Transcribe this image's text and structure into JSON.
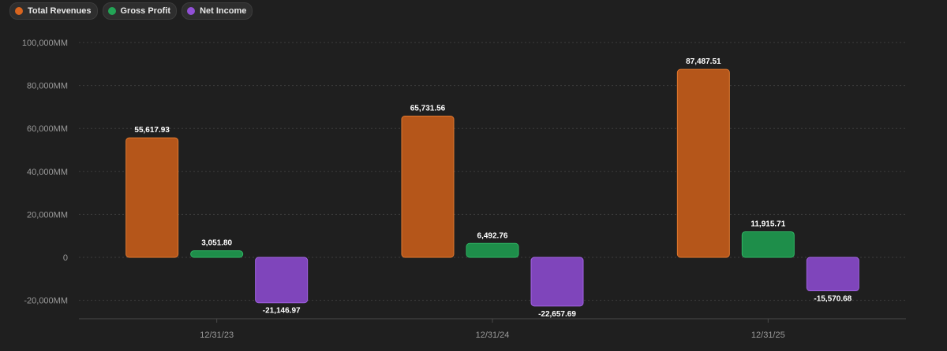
{
  "chart_data": {
    "type": "bar",
    "categories": [
      "12/31/23",
      "12/31/24",
      "12/31/25"
    ],
    "series": [
      {
        "name": "Total Revenues",
        "color": "#b5561a",
        "values": [
          55617.93,
          65731.56,
          87487.51
        ],
        "labels": [
          "55,617.93",
          "65,731.56",
          "87,487.51"
        ]
      },
      {
        "name": "Gross Profit",
        "color": "#1e8e4a",
        "values": [
          3051.8,
          6492.76,
          11915.71
        ],
        "labels": [
          "3,051.80",
          "6,492.76",
          "11,915.71"
        ]
      },
      {
        "name": "Net Income",
        "color": "#7f45bb",
        "values": [
          -21146.97,
          -22657.69,
          -15570.68
        ],
        "labels": [
          "-21,146.97",
          "-22,657.69",
          "-15,570.68"
        ]
      }
    ],
    "y_ticks": [
      100000,
      80000,
      60000,
      40000,
      20000,
      0,
      -20000
    ],
    "y_tick_labels": [
      "100,000MM",
      "80,000MM",
      "60,000MM",
      "40,000MM",
      "20,000MM",
      "0",
      "-20,000MM"
    ],
    "ylim": [
      -28000,
      100000
    ],
    "grid": true,
    "legend_position": "top-left"
  }
}
